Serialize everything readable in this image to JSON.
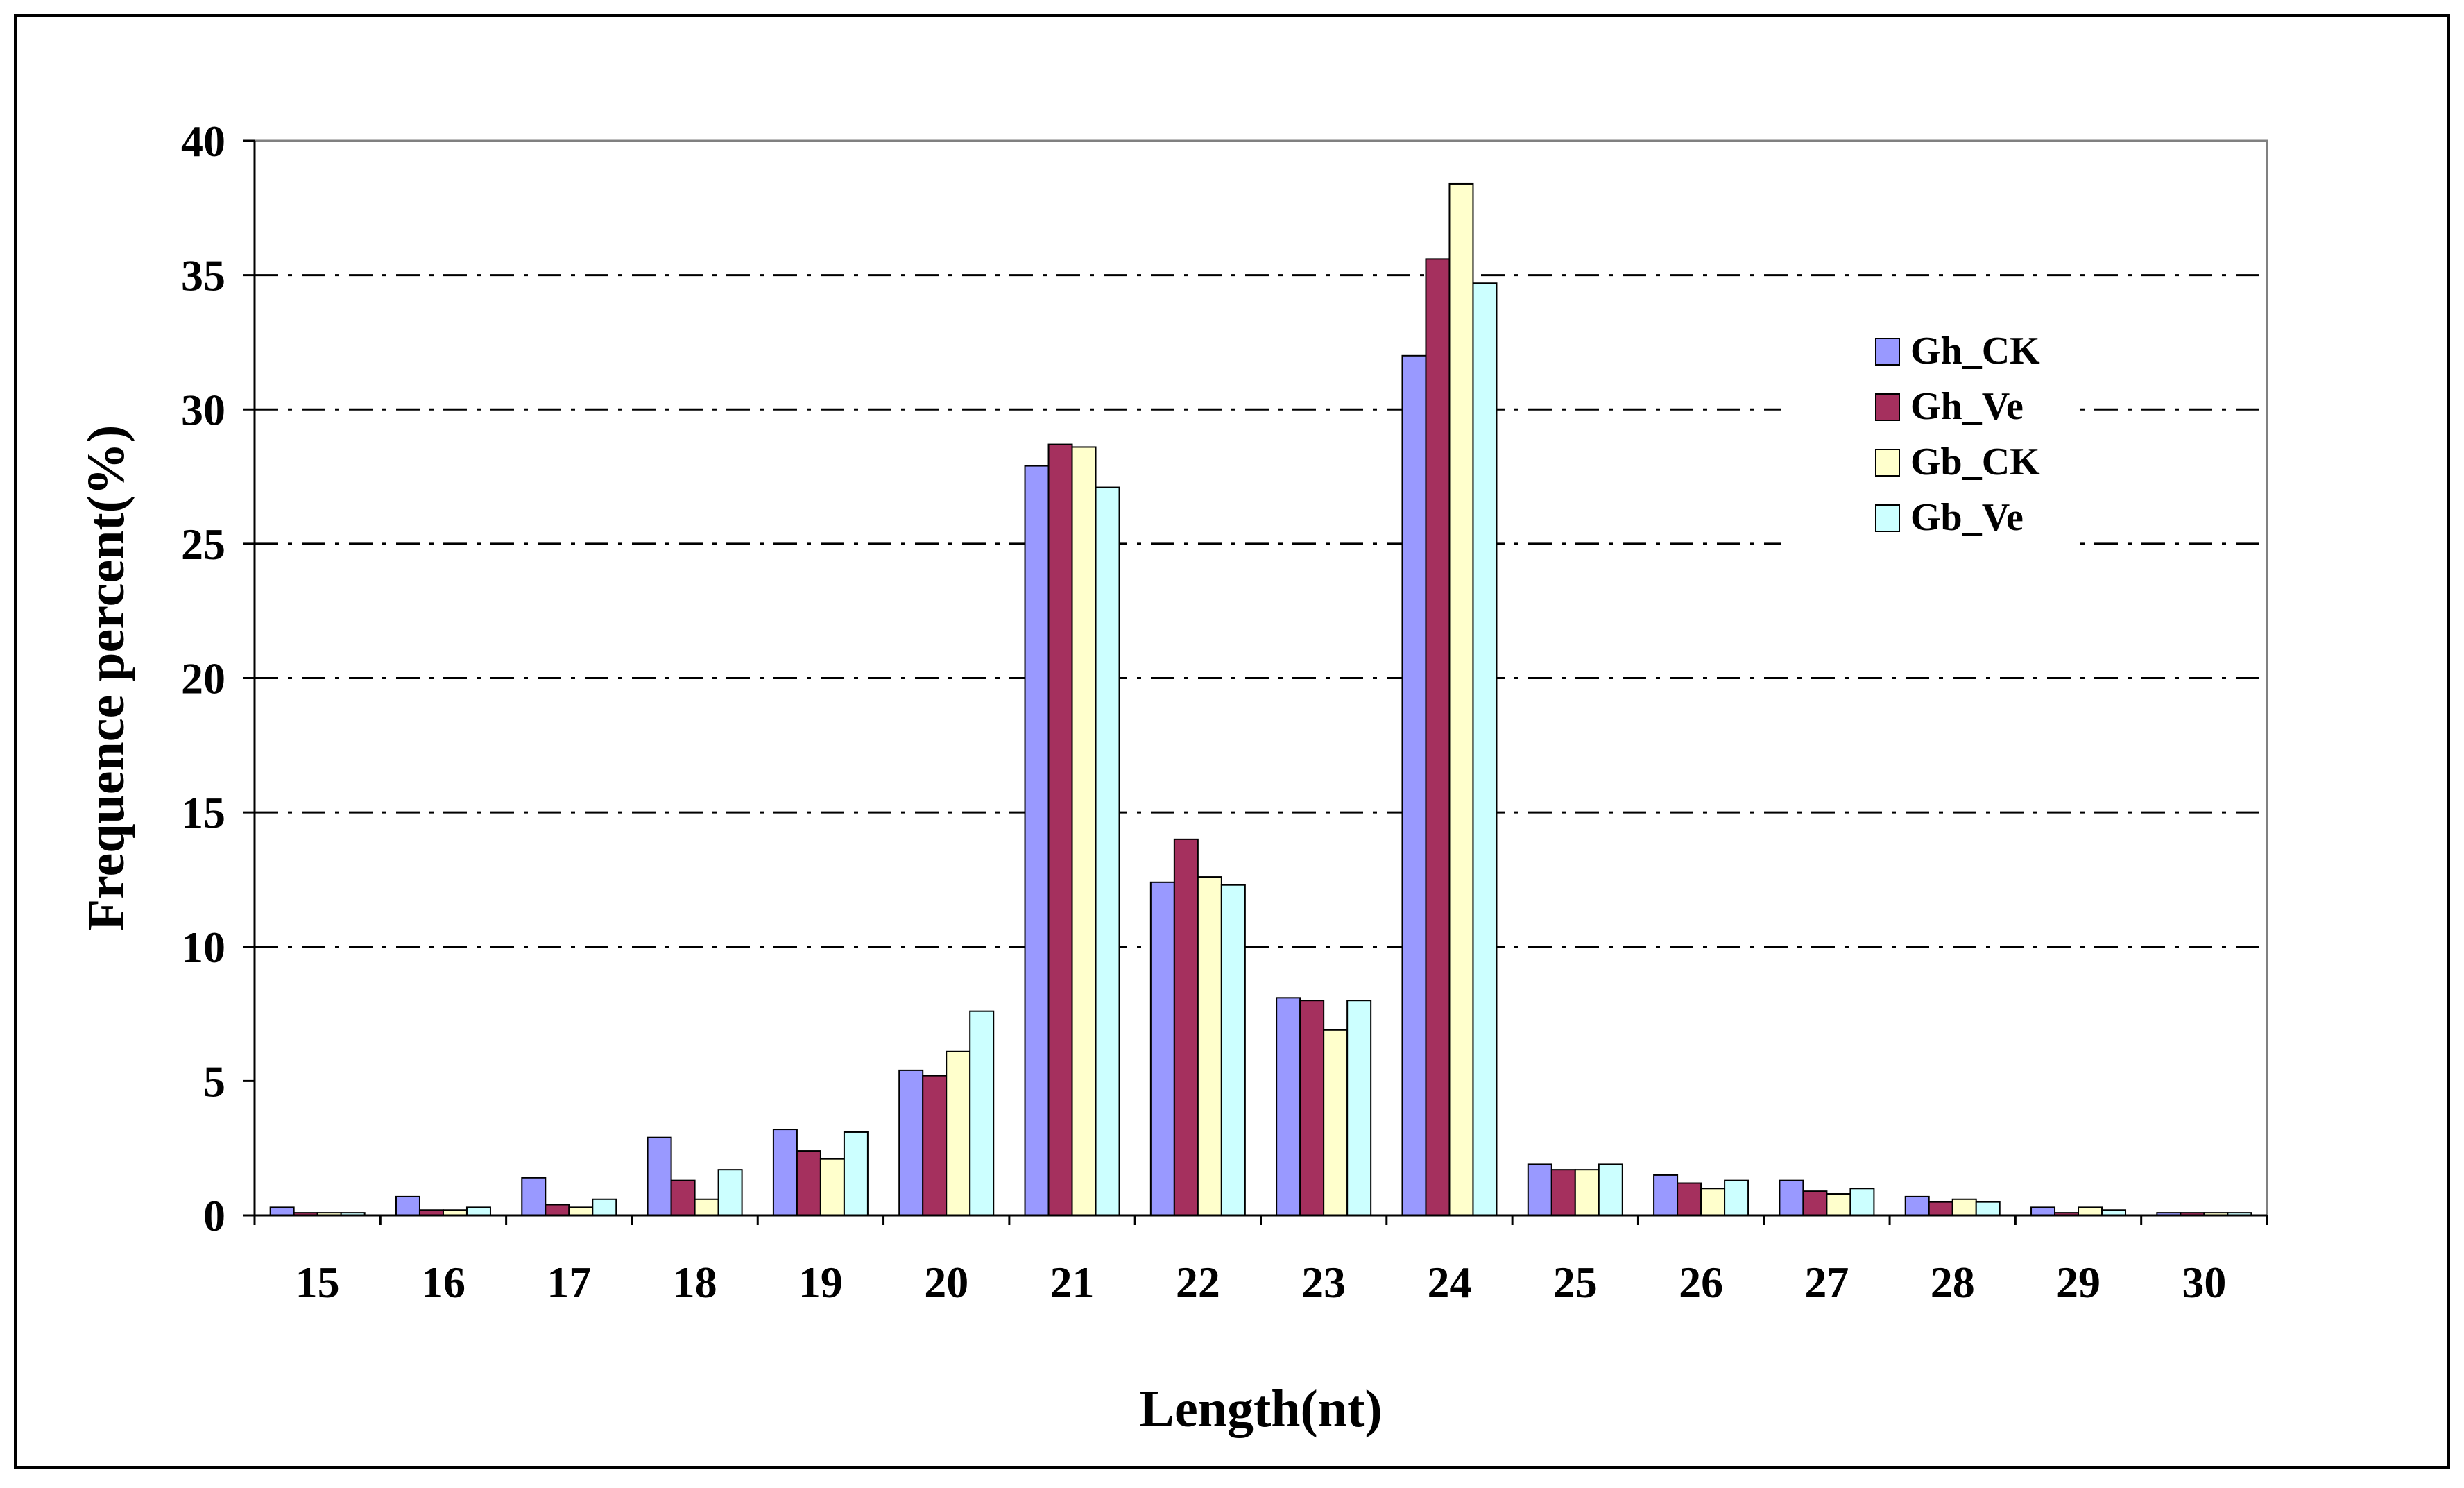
{
  "chart_data": {
    "type": "bar",
    "title": "",
    "xlabel": "Length(nt)",
    "ylabel": "Frequence percent(%)",
    "ylim": [
      0,
      40
    ],
    "yticks": [
      0,
      5,
      10,
      15,
      20,
      25,
      30,
      35,
      40
    ],
    "grid": "horizontal dash-dot at 10, 15, 20, 25, 30, 35",
    "legend_position": "top-right inside plot",
    "categories": [
      "15",
      "16",
      "17",
      "18",
      "19",
      "20",
      "21",
      "22",
      "23",
      "24",
      "25",
      "26",
      "27",
      "28",
      "29",
      "30"
    ],
    "series": [
      {
        "name": "Gh_CK",
        "color": "#9999ff",
        "values": [
          0.3,
          0.7,
          1.4,
          2.9,
          3.2,
          5.4,
          27.9,
          12.4,
          8.1,
          32.0,
          1.9,
          1.5,
          1.3,
          0.7,
          0.3,
          0.1
        ]
      },
      {
        "name": "Gh_Ve",
        "color": "#a5305e",
        "values": [
          0.1,
          0.2,
          0.4,
          1.3,
          2.4,
          5.2,
          28.7,
          14.0,
          8.0,
          35.6,
          1.7,
          1.2,
          0.9,
          0.5,
          0.1,
          0.1
        ]
      },
      {
        "name": "Gb_CK",
        "color": "#ffffcc",
        "values": [
          0.1,
          0.2,
          0.3,
          0.6,
          2.1,
          6.1,
          28.6,
          12.6,
          6.9,
          38.4,
          1.7,
          1.0,
          0.8,
          0.6,
          0.3,
          0.1
        ]
      },
      {
        "name": "Gb_Ve",
        "color": "#ccffff",
        "values": [
          0.1,
          0.3,
          0.6,
          1.7,
          3.1,
          7.6,
          27.1,
          12.3,
          8.0,
          34.7,
          1.9,
          1.3,
          1.0,
          0.5,
          0.2,
          0.1
        ]
      }
    ]
  }
}
